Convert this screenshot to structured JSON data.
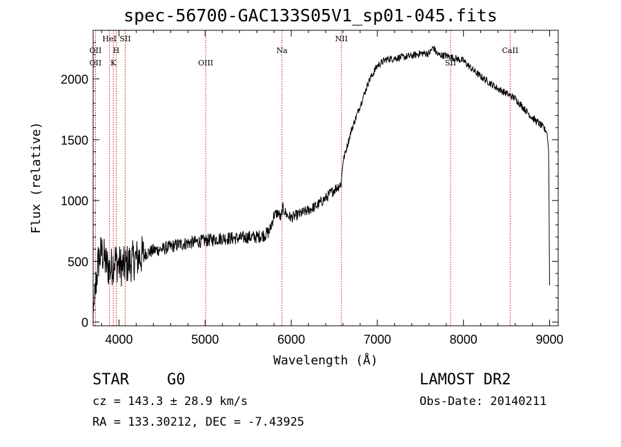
{
  "chart_data": {
    "type": "line",
    "title": "spec-56700-GAC133S05V1_sp01-045.fits",
    "xlabel": "Wavelength (Å)",
    "ylabel": "Flux (relative)",
    "xlim": [
      3700,
      9100
    ],
    "ylim": [
      -30,
      2400
    ],
    "x_ticks": [
      4000,
      5000,
      6000,
      7000,
      8000,
      9000
    ],
    "y_ticks": [
      0,
      500,
      1000,
      1500,
      2000
    ],
    "series_color": "#000000",
    "line_color": "#cc0000",
    "lines": [
      {
        "name": "OII",
        "x": 3727,
        "row": 1
      },
      {
        "name": "OII",
        "x": 3727,
        "row": 2
      },
      {
        "name": "HeI",
        "x": 3889,
        "row": 0
      },
      {
        "name": "H",
        "x": 3968,
        "row": 1
      },
      {
        "name": "K",
        "x": 3934,
        "row": 2
      },
      {
        "name": "SII",
        "x": 4072,
        "row": 0
      },
      {
        "name": "OIII",
        "x": 5007,
        "row": 2
      },
      {
        "name": "Na",
        "x": 5893,
        "row": 1
      },
      {
        "name": "NII",
        "x": 6583,
        "row": 0
      },
      {
        "name": "SII",
        "x": 7850,
        "row": 2
      },
      {
        "name": "CaII",
        "x": 8542,
        "row": 1
      }
    ],
    "spectrum": {
      "x": [
        3700,
        3730,
        3760,
        3800,
        3850,
        3900,
        3950,
        4000,
        4050,
        4100,
        4200,
        4300,
        4400,
        4500,
        4600,
        4700,
        4800,
        4900,
        5000,
        5100,
        5200,
        5300,
        5400,
        5500,
        5600,
        5700,
        5750,
        5800,
        5850,
        5880,
        5900,
        5950,
        6000,
        6100,
        6200,
        6300,
        6400,
        6500,
        6550,
        6580,
        6600,
        6650,
        6700,
        6800,
        6900,
        7000,
        7100,
        7200,
        7300,
        7400,
        7500,
        7600,
        7650,
        7700,
        7800,
        7900,
        8000,
        8100,
        8200,
        8300,
        8400,
        8500,
        8600,
        8700,
        8800,
        8900,
        8950,
        8970,
        8990,
        9000
      ],
      "y": [
        0,
        300,
        500,
        580,
        480,
        430,
        520,
        470,
        450,
        480,
        520,
        560,
        590,
        600,
        620,
        640,
        650,
        660,
        670,
        680,
        690,
        690,
        690,
        700,
        700,
        720,
        750,
        880,
        900,
        850,
        940,
        880,
        860,
        890,
        920,
        960,
        1020,
        1090,
        1120,
        1140,
        1320,
        1450,
        1580,
        1780,
        1980,
        2110,
        2160,
        2170,
        2180,
        2190,
        2210,
        2210,
        2260,
        2200,
        2190,
        2170,
        2150,
        2080,
        2020,
        1970,
        1920,
        1880,
        1840,
        1760,
        1680,
        1620,
        1580,
        1560,
        1400,
        300
      ]
    }
  },
  "info": {
    "class_type": "STAR",
    "subclass": "G0",
    "survey": "LAMOST DR2",
    "cz": "cz = 143.3 ± 28.9 km/s",
    "obs_date": "Obs-Date: 20140211",
    "radec": "RA = 133.30212, DEC =  -7.43925"
  }
}
